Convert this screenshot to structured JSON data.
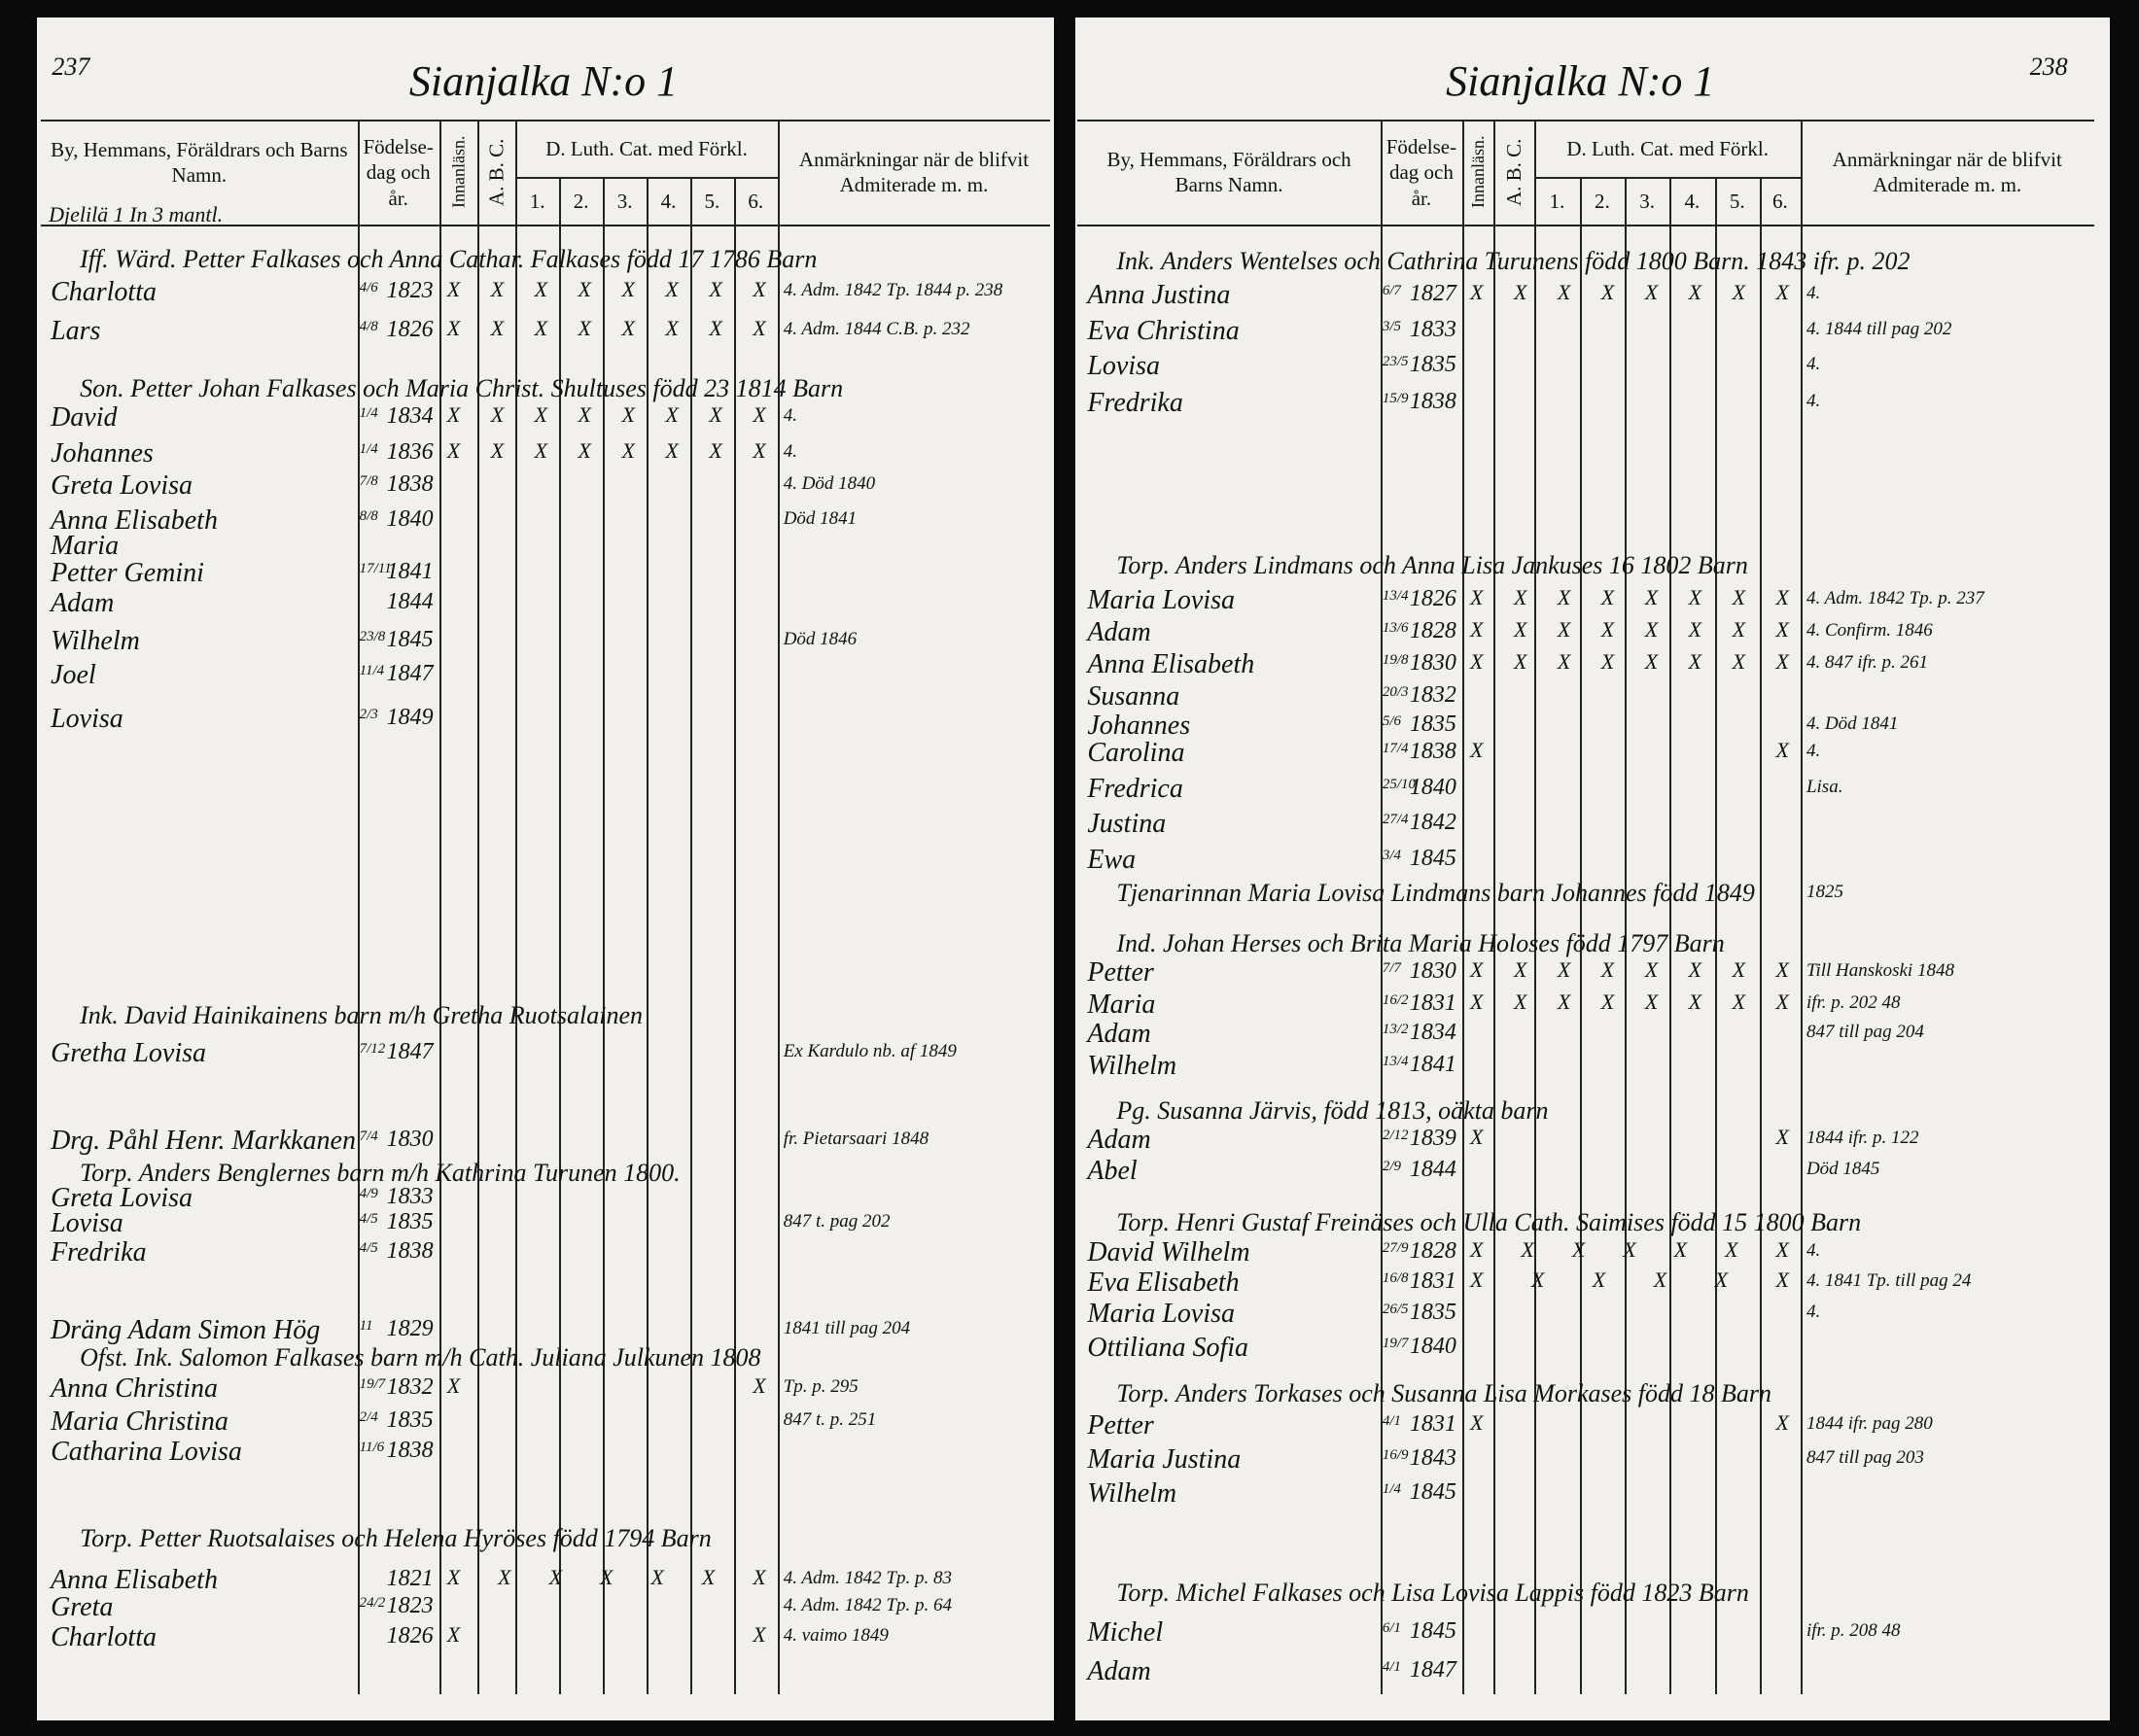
{
  "pages": [
    {
      "page_number": "237",
      "title": "Sianjalka N:o 1",
      "subheading": "Djelilä 1 In 3 mantl.",
      "column_headers": {
        "name": "By, Hemmans, Föräldrars och Barns Namn.",
        "birth": "Födelse-dag och år.",
        "reading": "Innanläsn.",
        "abc": "A. B. C.",
        "catechism": "D. Luth. Cat. med Förkl.",
        "numbers": [
          "1.",
          "2.",
          "3.",
          "4.",
          "5.",
          "6."
        ],
        "notes": "Anmärkningar när de blifvit Admiterade m. m."
      },
      "rows": [
        {
          "heading": "Iff. Wärd. Petter Falkases och Anna Cathar. Falkases född 17 1786 Barn"
        },
        {
          "name": "Charlotta",
          "date": "4/6",
          "year": "1823",
          "marks": "X X X X X X X X",
          "note": "4. Adm. 1842 Tp. 1844 p. 238"
        },
        {
          "name": "Lars",
          "date": "4/8",
          "year": "1826",
          "marks": "X X X X X X X X",
          "note": "4. Adm. 1844 C.B. p. 232"
        },
        {
          "heading": "Son. Petter Johan Falkases och Maria Christ. Shultuses född 23 1814 Barn"
        },
        {
          "name": "David",
          "date": "1/4",
          "year": "1834",
          "marks": "X X X X X X X X",
          "note": "4."
        },
        {
          "name": "Johannes",
          "date": "1/4",
          "year": "1836",
          "marks": "X X X X X X X X",
          "note": "4."
        },
        {
          "name": "Greta Lovisa",
          "date": "7/8",
          "year": "1838",
          "note": "4. Död 1840"
        },
        {
          "name": "Anna Elisabeth",
          "date": "8/8",
          "year": "1840",
          "note": "Död 1841"
        },
        {
          "name": "Maria"
        },
        {
          "name": "Petter Gemini",
          "date": "17/11",
          "year": "1841"
        },
        {
          "name": "Adam",
          "year": "1844"
        },
        {
          "name": "Wilhelm",
          "date": "23/8",
          "year": "1845",
          "note": "Död 1846"
        },
        {
          "name": "Joel",
          "date": "11/4",
          "year": "1847"
        },
        {
          "name": "Lovisa",
          "date": "2/3",
          "year": "1849"
        },
        {
          "heading": "Ink. David Hainikainens barn m/h Gretha Ruotsalainen"
        },
        {
          "name": "Gretha Lovisa",
          "date": "7/12",
          "year": "1847",
          "note": "Ex Kardulo nb. af 1849"
        },
        {
          "name": "Drg. Påhl Henr. Markkanen",
          "date": "7/4",
          "year": "1830",
          "note": "fr. Pietarsaari 1848"
        },
        {
          "heading": "Torp. Anders Benglernes barn m/h Kathrina Turunen 1800."
        },
        {
          "name": "Greta Lovisa",
          "date": "4/9",
          "year": "1833"
        },
        {
          "name": "Lovisa",
          "date": "4/5",
          "year": "1835",
          "note": "847 t. pag 202"
        },
        {
          "name": "Fredrika",
          "date": "4/5",
          "year": "1838"
        },
        {
          "name": "Dräng Adam Simon Hög",
          "date": "11",
          "year": "1829",
          "note": "1841 till pag 204"
        },
        {
          "heading": "Ofst. Ink. Salomon Falkases barn m/h Cath. Juliana Julkunen 1808"
        },
        {
          "name": "Anna Christina",
          "date": "19/7",
          "year": "1832",
          "marks": "X X",
          "note": "Tp. p. 295"
        },
        {
          "name": "Maria Christina",
          "date": "2/4",
          "year": "1835",
          "note": "847 t. p. 251"
        },
        {
          "name": "Catharina Lovisa",
          "date": "11/6",
          "year": "1838"
        },
        {
          "heading": "Torp. Petter Ruotsalaises och Helena Hyröses född 1794 Barn"
        },
        {
          "name": "Anna Elisabeth",
          "year": "1821",
          "marks": "X X X X X X X",
          "note": "4. Adm. 1842 Tp. p. 83"
        },
        {
          "name": "Greta",
          "date": "24/2",
          "year": "1823",
          "note": "4. Adm. 1842 Tp. p. 64"
        },
        {
          "name": "Charlotta",
          "year": "1826",
          "marks": "X X",
          "note": "4. vaimo 1849"
        }
      ]
    },
    {
      "page_number": "238",
      "title": "Sianjalka N:o 1",
      "column_headers": {
        "name": "By, Hemmans, Föräldrars och Barns Namn.",
        "birth": "Födelse-dag och år.",
        "reading": "Innanläsn.",
        "abc": "A. B. C.",
        "catechism": "D. Luth. Cat. med Förkl.",
        "numbers": [
          "1.",
          "2.",
          "3.",
          "4.",
          "5.",
          "6."
        ],
        "notes": "Anmärkningar när de blifvit Admiterade m. m."
      },
      "rows": [
        {
          "heading": "Ink. Anders Wentelses och Cathrina Turunens född 1800 Barn. 1843 ifr. p. 202"
        },
        {
          "name": "Anna Justina",
          "date": "6/7",
          "year": "1827",
          "marks": "X X X X X X X X",
          "note": "4."
        },
        {
          "name": "Eva Christina",
          "date": "3/5",
          "year": "1833",
          "note": "4. 1844 till pag 202"
        },
        {
          "name": "Lovisa",
          "date": "23/5",
          "year": "1835",
          "note": "4."
        },
        {
          "name": "Fredrika",
          "date": "15/9",
          "year": "1838",
          "note": "4."
        },
        {
          "heading": "Torp. Anders Lindmans och Anna Lisa Jankuses 16 1802 Barn"
        },
        {
          "name": "Maria Lovisa",
          "date": "13/4",
          "year": "1826",
          "marks": "X X X X X X X X",
          "note": "4. Adm. 1842 Tp. p. 237"
        },
        {
          "name": "Adam",
          "date": "13/6",
          "year": "1828",
          "marks": "X X X X X X X X",
          "note": "4. Confirm. 1846"
        },
        {
          "name": "Anna Elisabeth",
          "date": "19/8",
          "year": "1830",
          "marks": "X X X X X X X X",
          "note": "4. 847 ifr. p. 261"
        },
        {
          "name": "Susanna",
          "date": "20/3",
          "year": "1832"
        },
        {
          "name": "Johannes",
          "date": "5/6",
          "year": "1835",
          "note": "4. Död 1841"
        },
        {
          "name": "Carolina",
          "date": "17/4",
          "year": "1838",
          "marks": "X X",
          "note": "4."
        },
        {
          "name": "Fredrica",
          "date": "25/10",
          "year": "1840",
          "note": "Lisa."
        },
        {
          "name": "Justina",
          "date": "27/4",
          "year": "1842"
        },
        {
          "name": "Ewa",
          "date": "3/4",
          "year": "1845"
        },
        {
          "heading": "Tjenarinnan Maria Lovisa Lindmans barn Johannes född 1849",
          "note": "1825"
        },
        {
          "heading": "Ind. Johan Herses och Brita Maria Holoses född 1797 Barn"
        },
        {
          "name": "Petter",
          "date": "7/7",
          "year": "1830",
          "marks": "X X X X X X X X",
          "note": "Till Hanskoski 1848"
        },
        {
          "name": "Maria",
          "date": "16/2",
          "year": "1831",
          "marks": "X X X X X X X X",
          "note": "ifr. p. 202 48"
        },
        {
          "name": "Adam",
          "date": "13/2",
          "year": "1834",
          "note": "847 till pag 204"
        },
        {
          "name": "Wilhelm",
          "date": "13/4",
          "year": "1841"
        },
        {
          "heading": "Pg. Susanna Järvis, född 1813, oäkta barn"
        },
        {
          "name": "Adam",
          "date": "2/12",
          "year": "1839",
          "marks": "X X",
          "note": "1844 ifr. p. 122"
        },
        {
          "name": "Abel",
          "date": "2/9",
          "year": "1844",
          "note": "Död 1845"
        },
        {
          "heading": "Torp. Henri Gustaf Freinäses och Ulla Cath. Saimises född 15 1800 Barn"
        },
        {
          "name": "David Wilhelm",
          "date": "27/9",
          "year": "1828",
          "marks": "X X X X X X X",
          "note": "4."
        },
        {
          "name": "Eva Elisabeth",
          "date": "16/8",
          "year": "1831",
          "marks": "X X X X X X",
          "note": "4. 1841 Tp. till pag 24"
        },
        {
          "name": "Maria Lovisa",
          "date": "26/5",
          "year": "1835",
          "note": "4."
        },
        {
          "name": "Ottiliana Sofia",
          "date": "19/7",
          "year": "1840"
        },
        {
          "heading": "Torp. Anders Torkases och Susanna Lisa Morkases född 18 Barn"
        },
        {
          "name": "Petter",
          "date": "4/1",
          "year": "1831",
          "marks": "X X",
          "note": "1844 ifr. pag 280"
        },
        {
          "name": "Maria Justina",
          "date": "16/9",
          "year": "1843",
          "note": "847 till pag 203"
        },
        {
          "name": "Wilhelm",
          "date": "1/4",
          "year": "1845"
        },
        {
          "heading": "Torp. Michel Falkases och Lisa Lovisa Lappis född 1823 Barn"
        },
        {
          "name": "Michel",
          "date": "6/1",
          "year": "1845",
          "note": "ifr. p. 208 48"
        },
        {
          "name": "Adam",
          "date": "4/1",
          "year": "1847"
        }
      ]
    }
  ]
}
